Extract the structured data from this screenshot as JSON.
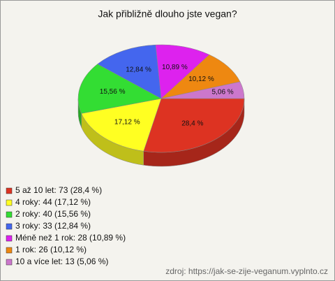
{
  "chart_data": {
    "type": "pie",
    "title": "Jak přibližně dlouho jste vegan?",
    "categories": [
      "5 až 10 let: 73 (28,4 %)",
      "4 roky: 44 (17,12 %)",
      "2 roky: 40 (15,56 %)",
      "3 roky: 33 (12,84 %)",
      "Méně než 1 rok: 28 (10,89 %)",
      "1 rok: 26 (10,12 %)",
      "10 a více let: 13 (5,06 %)"
    ],
    "values": [
      28.4,
      17.12,
      15.56,
      12.84,
      10.89,
      10.12,
      5.06
    ],
    "value_labels": [
      "28,4 %",
      "17,12 %",
      "15,56 %",
      "12,84 %",
      "10,89 %",
      "10,12 %",
      "5,06 %"
    ],
    "colors": [
      "#dd3322",
      "#ffff22",
      "#33dd33",
      "#4466ee",
      "#dd22ee",
      "#ee8811",
      "#cc77cc"
    ],
    "source": "zdroj: https://jak-se-zije-veganum.vyplnto.cz"
  }
}
